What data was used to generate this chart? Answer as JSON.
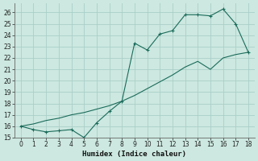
{
  "xlabel": "Humidex (Indice chaleur)",
  "background_color": "#cce8e0",
  "grid_color": "#aacfc8",
  "line_color": "#1a6b5a",
  "xlim": [
    -0.5,
    18.5
  ],
  "ylim": [
    15,
    26.8
  ],
  "xticks": [
    0,
    1,
    2,
    3,
    4,
    5,
    6,
    7,
    8,
    9,
    10,
    11,
    12,
    13,
    14,
    15,
    16,
    17,
    18
  ],
  "yticks": [
    15,
    16,
    17,
    18,
    19,
    20,
    21,
    22,
    23,
    24,
    25,
    26
  ],
  "line1_x": [
    0,
    1,
    2,
    3,
    4,
    5,
    6,
    7,
    8,
    9,
    10,
    11,
    12,
    13,
    14,
    15,
    16,
    17,
    18
  ],
  "line1_y": [
    16.0,
    15.7,
    15.5,
    15.6,
    15.7,
    15.0,
    16.3,
    17.3,
    18.2,
    23.3,
    22.7,
    24.1,
    24.4,
    25.8,
    25.8,
    25.7,
    26.3,
    25.0,
    22.5
  ],
  "line2_x": [
    0,
    1,
    2,
    3,
    4,
    5,
    6,
    7,
    8,
    9,
    10,
    11,
    12,
    13,
    14,
    15,
    16,
    17,
    18
  ],
  "line2_y": [
    16.0,
    16.2,
    16.5,
    16.7,
    17.0,
    17.2,
    17.5,
    17.8,
    18.2,
    18.7,
    19.3,
    19.9,
    20.5,
    21.2,
    21.7,
    21.0,
    22.0,
    22.3,
    22.5
  ]
}
